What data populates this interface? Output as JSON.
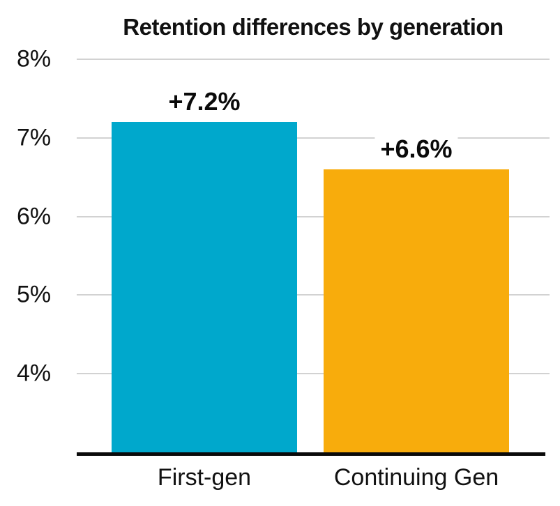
{
  "chart_data": {
    "type": "bar",
    "title": "Retention differences by generation",
    "categories": [
      "First-gen",
      "Continuing Gen"
    ],
    "values": [
      7.2,
      6.6
    ],
    "value_labels": [
      "+7.2%",
      "+6.6%"
    ],
    "series_colors": [
      "#00A8CC",
      "#F8AC0C"
    ],
    "y_axis": {
      "min": 3,
      "max": 8,
      "ticks": [
        {
          "label": "8%",
          "value": 8
        },
        {
          "label": "7%",
          "value": 7
        },
        {
          "label": "6%",
          "value": 6
        },
        {
          "label": "5%",
          "value": 5
        },
        {
          "label": "4%",
          "value": 4
        }
      ]
    },
    "grid": true,
    "legend": "none",
    "xlabel": "",
    "ylabel": ""
  },
  "colors": {
    "gridline": "#D2D2D2",
    "axis": "#0A0A0A",
    "text": "#111111"
  }
}
